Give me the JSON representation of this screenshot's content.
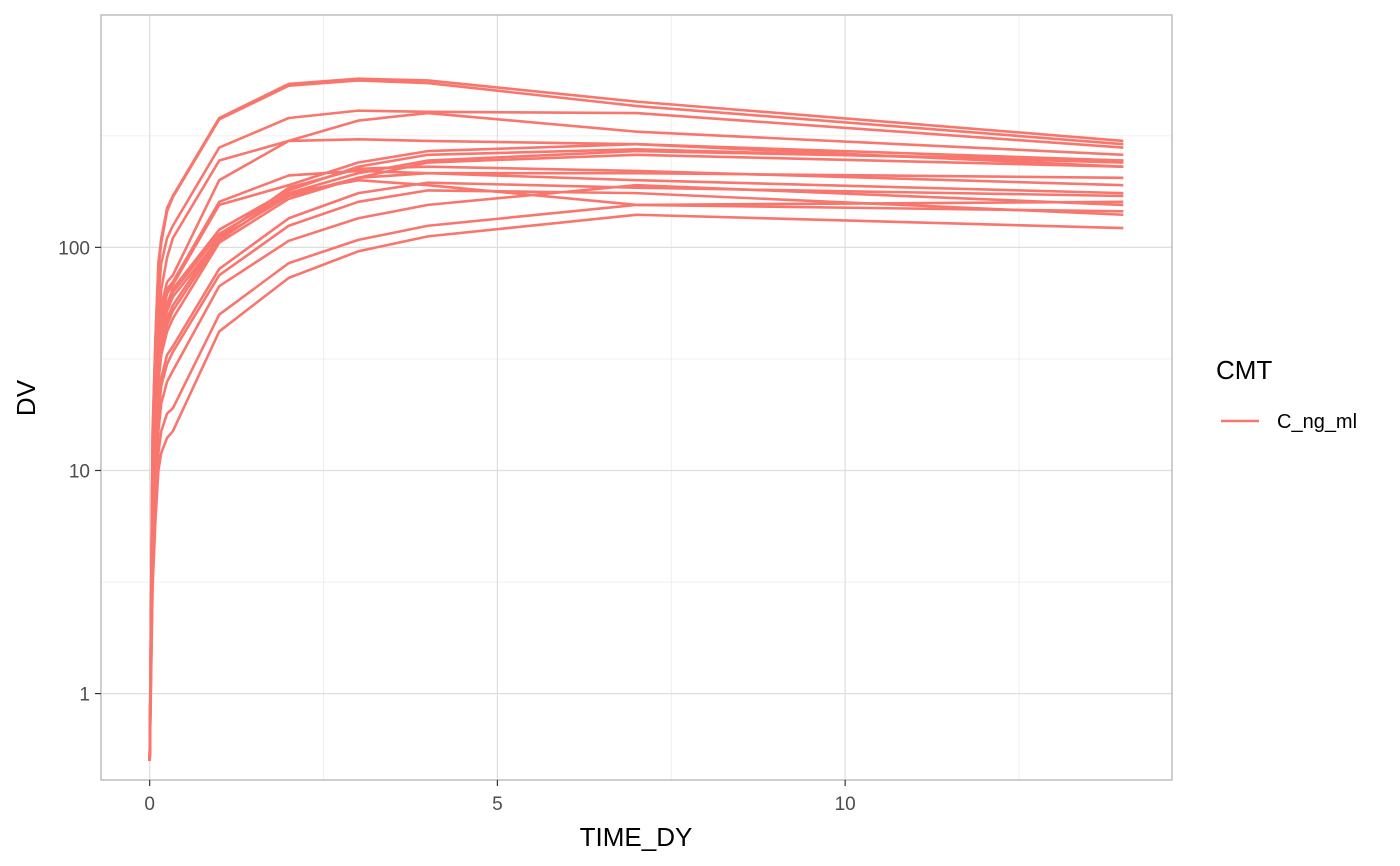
{
  "chart_data": {
    "type": "line",
    "xlabel": "TIME_DY",
    "ylabel": "DV",
    "x_scale": "linear",
    "y_scale": "log10",
    "xlim": [
      -0.7,
      14.7
    ],
    "ylim": [
      0.41,
      1100
    ],
    "x_ticks": [
      {
        "value": 0,
        "label": "0"
      },
      {
        "value": 5,
        "label": "5"
      },
      {
        "value": 10,
        "label": "10"
      }
    ],
    "x_minor_ticks": [
      2.5,
      7.5,
      12.5
    ],
    "y_ticks": [
      {
        "value": 1,
        "label": "1"
      },
      {
        "value": 10,
        "label": "10"
      },
      {
        "value": 100,
        "label": "100"
      }
    ],
    "y_minor_ticks": [
      3.16,
      31.6,
      316
    ],
    "grid": true,
    "legend": {
      "title": "CMT",
      "position": "right",
      "entries": [
        {
          "label": "C_ng_ml",
          "color": "#F8766D"
        }
      ]
    },
    "line_color": "#F8766D",
    "x": [
      0,
      0.0417,
      0.0833,
      0.125,
      0.1667,
      0.25,
      0.3333,
      1,
      2,
      3,
      4,
      7,
      14
    ],
    "series": [
      {
        "values": [
          0.5,
          15,
          40,
          85,
          110,
          150,
          170,
          380,
          540,
          570,
          560,
          450,
          300
        ]
      },
      {
        "values": [
          0.5,
          14,
          38,
          80,
          105,
          145,
          168,
          375,
          530,
          560,
          545,
          430,
          290
        ]
      },
      {
        "values": [
          0.5,
          12,
          32,
          60,
          85,
          110,
          125,
          280,
          380,
          410,
          405,
          400,
          280
        ]
      },
      {
        "values": [
          0.5,
          10,
          25,
          45,
          65,
          90,
          110,
          245,
          300,
          370,
          400,
          330,
          260
        ]
      },
      {
        "values": [
          0.5,
          9,
          22,
          40,
          55,
          70,
          75,
          200,
          300,
          305,
          300,
          290,
          245
        ]
      },
      {
        "values": [
          0.5,
          8,
          20,
          38,
          50,
          65,
          70,
          160,
          210,
          220,
          215,
          215,
          205
        ]
      },
      {
        "values": [
          0.5,
          8,
          20,
          36,
          48,
          62,
          68,
          155,
          190,
          240,
          270,
          290,
          230
        ]
      },
      {
        "values": [
          0.5,
          7,
          18,
          33,
          44,
          56,
          65,
          120,
          180,
          230,
          260,
          275,
          240
        ]
      },
      {
        "values": [
          0.5,
          7,
          18,
          32,
          43,
          55,
          63,
          115,
          175,
          215,
          245,
          270,
          245
        ]
      },
      {
        "values": [
          0.5,
          6.5,
          17,
          30,
          40,
          52,
          60,
          110,
          170,
          205,
          240,
          260,
          230
        ]
      },
      {
        "values": [
          0.5,
          6,
          16,
          28,
          37,
          48,
          55,
          112,
          185,
          225,
          230,
          220,
          190
        ]
      },
      {
        "values": [
          0.5,
          6,
          15,
          27,
          35,
          45,
          52,
          108,
          175,
          200,
          190,
          155,
          160
        ]
      },
      {
        "values": [
          0.5,
          5.5,
          14,
          25,
          33,
          42,
          48,
          105,
          165,
          205,
          215,
          200,
          175
        ]
      },
      {
        "values": [
          0.5,
          5,
          12,
          20,
          26,
          33,
          36,
          80,
          135,
          175,
          195,
          185,
          170
        ]
      },
      {
        "values": [
          0.5,
          4.5,
          11,
          18,
          24,
          30,
          34,
          75,
          125,
          160,
          180,
          175,
          140
        ]
      },
      {
        "values": [
          0.5,
          4,
          9,
          15,
          20,
          25,
          28,
          67,
          107,
          135,
          155,
          190,
          155
        ]
      },
      {
        "values": [
          0.5,
          3.5,
          7,
          12,
          15,
          18,
          19,
          50,
          85,
          108,
          125,
          155,
          145
        ]
      },
      {
        "values": [
          0.5,
          3,
          6,
          10,
          12,
          14,
          15,
          42,
          73,
          96,
          112,
          140,
          122
        ]
      }
    ]
  }
}
